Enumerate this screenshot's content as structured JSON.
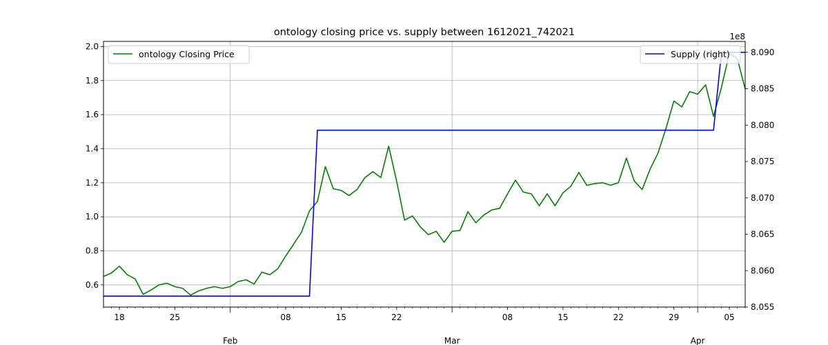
{
  "chart_data": {
    "type": "line",
    "title": "ontology closing price vs. supply between 1612021_742021",
    "xlabel": "",
    "ylabel": "",
    "y2_offset_label": "1e8",
    "x_range": [
      "2021-01-16",
      "2021-04-07"
    ],
    "ylim": [
      0.47,
      2.03
    ],
    "y2lim": [
      805500000,
      809150000
    ],
    "grid": true,
    "x_minor_ticks": [
      {
        "date": "2021-01-18",
        "label": "18"
      },
      {
        "date": "2021-01-25",
        "label": "25"
      },
      {
        "date": "2021-02-08",
        "label": "08"
      },
      {
        "date": "2021-02-15",
        "label": "15"
      },
      {
        "date": "2021-02-22",
        "label": "22"
      },
      {
        "date": "2021-03-08",
        "label": "08"
      },
      {
        "date": "2021-03-15",
        "label": "15"
      },
      {
        "date": "2021-03-22",
        "label": "22"
      },
      {
        "date": "2021-03-29",
        "label": "29"
      },
      {
        "date": "2021-04-05",
        "label": "05"
      }
    ],
    "x_major_ticks": [
      {
        "date": "2021-02-01",
        "label": "Feb"
      },
      {
        "date": "2021-03-01",
        "label": "Mar"
      },
      {
        "date": "2021-04-01",
        "label": "Apr"
      }
    ],
    "y_ticks": [
      {
        "value": 0.6,
        "label": "0.6"
      },
      {
        "value": 0.8,
        "label": "0.8"
      },
      {
        "value": 1.0,
        "label": "1.0"
      },
      {
        "value": 1.2,
        "label": "1.2"
      },
      {
        "value": 1.4,
        "label": "1.4"
      },
      {
        "value": 1.6,
        "label": "1.6"
      },
      {
        "value": 1.8,
        "label": "1.8"
      },
      {
        "value": 2.0,
        "label": "2.0"
      }
    ],
    "y2_ticks": [
      {
        "value": 805500000,
        "label": "8.055"
      },
      {
        "value": 806000000,
        "label": "8.060"
      },
      {
        "value": 806500000,
        "label": "8.065"
      },
      {
        "value": 807000000,
        "label": "8.070"
      },
      {
        "value": 807500000,
        "label": "8.075"
      },
      {
        "value": 808000000,
        "label": "8.080"
      },
      {
        "value": 808500000,
        "label": "8.085"
      },
      {
        "value": 809000000,
        "label": "8.090"
      }
    ],
    "legend_left": {
      "position": "upper-left",
      "label": "ontology Closing Price"
    },
    "legend_right": {
      "position": "upper-right",
      "label": "Supply (right)"
    },
    "series": [
      {
        "name": "ontology Closing Price",
        "axis": "left",
        "color": "#008000",
        "x": [
          "2021-01-16",
          "2021-01-17",
          "2021-01-18",
          "2021-01-19",
          "2021-01-20",
          "2021-01-21",
          "2021-01-22",
          "2021-01-23",
          "2021-01-24",
          "2021-01-25",
          "2021-01-26",
          "2021-01-27",
          "2021-01-28",
          "2021-01-29",
          "2021-01-30",
          "2021-01-31",
          "2021-02-01",
          "2021-02-02",
          "2021-02-03",
          "2021-02-04",
          "2021-02-05",
          "2021-02-06",
          "2021-02-07",
          "2021-02-08",
          "2021-02-09",
          "2021-02-10",
          "2021-02-11",
          "2021-02-12",
          "2021-02-13",
          "2021-02-14",
          "2021-02-15",
          "2021-02-16",
          "2021-02-17",
          "2021-02-18",
          "2021-02-19",
          "2021-02-20",
          "2021-02-21",
          "2021-02-22",
          "2021-02-23",
          "2021-02-24",
          "2021-02-25",
          "2021-02-26",
          "2021-02-27",
          "2021-02-28",
          "2021-03-01",
          "2021-03-02",
          "2021-03-03",
          "2021-03-04",
          "2021-03-05",
          "2021-03-06",
          "2021-03-07",
          "2021-03-08",
          "2021-03-09",
          "2021-03-10",
          "2021-03-11",
          "2021-03-12",
          "2021-03-13",
          "2021-03-14",
          "2021-03-15",
          "2021-03-16",
          "2021-03-17",
          "2021-03-18",
          "2021-03-19",
          "2021-03-20",
          "2021-03-21",
          "2021-03-22",
          "2021-03-23",
          "2021-03-24",
          "2021-03-25",
          "2021-03-26",
          "2021-03-27",
          "2021-03-28",
          "2021-03-29",
          "2021-03-30",
          "2021-03-31",
          "2021-04-01",
          "2021-04-02",
          "2021-04-03",
          "2021-04-04",
          "2021-04-05",
          "2021-04-06",
          "2021-04-07"
        ],
        "values": [
          0.65,
          0.67,
          0.71,
          0.66,
          0.635,
          0.545,
          0.57,
          0.6,
          0.61,
          0.59,
          0.58,
          0.54,
          0.565,
          0.58,
          0.59,
          0.58,
          0.59,
          0.62,
          0.63,
          0.605,
          0.675,
          0.66,
          0.695,
          0.77,
          0.84,
          0.91,
          1.035,
          1.09,
          1.295,
          1.165,
          1.155,
          1.125,
          1.16,
          1.23,
          1.265,
          1.23,
          1.415,
          1.21,
          0.98,
          1.005,
          0.94,
          0.895,
          0.915,
          0.85,
          0.915,
          0.92,
          1.03,
          0.965,
          1.01,
          1.04,
          1.05,
          1.135,
          1.215,
          1.145,
          1.135,
          1.065,
          1.135,
          1.065,
          1.14,
          1.18,
          1.26,
          1.185,
          1.195,
          1.2,
          1.185,
          1.2,
          1.345,
          1.21,
          1.16,
          1.28,
          1.375,
          1.52,
          1.68,
          1.645,
          1.735,
          1.72,
          1.775,
          1.59,
          1.76,
          1.96,
          1.93,
          1.75
        ]
      },
      {
        "name": "Supply (right)",
        "axis": "right",
        "color": "#0000ff",
        "x": [
          "2021-01-16",
          "2021-02-11",
          "2021-02-12",
          "2021-04-03",
          "2021-04-04",
          "2021-04-07"
        ],
        "values": [
          805650000,
          805650000,
          807930000,
          807930000,
          809000000,
          809000000
        ]
      }
    ]
  }
}
